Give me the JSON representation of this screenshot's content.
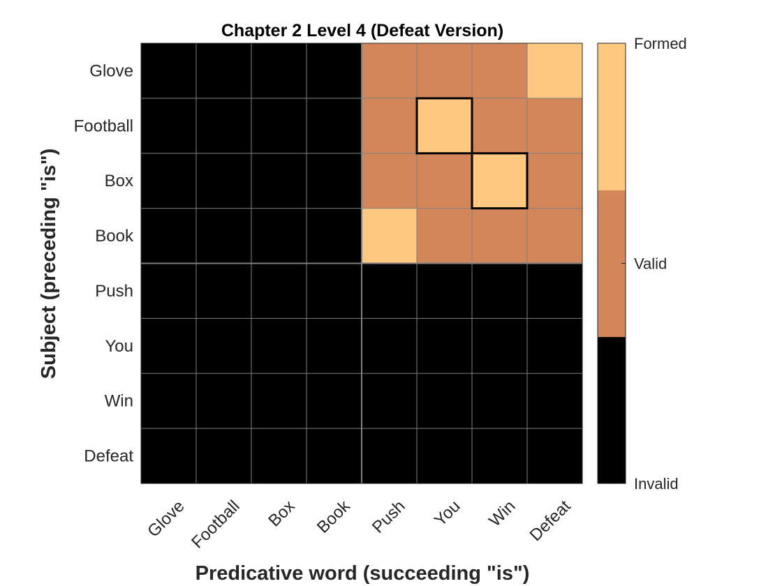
{
  "chart_data": {
    "type": "heatmap",
    "title": "Chapter 2 Level 4 (Defeat Version)",
    "xlabel": "Predicative word (succeeding \"is\")",
    "ylabel": "Subject (preceding \"is\")",
    "x_categories": [
      "Glove",
      "Football",
      "Box",
      "Book",
      "Push",
      "You",
      "Win",
      "Defeat"
    ],
    "y_categories": [
      "Glove",
      "Football",
      "Box",
      "Book",
      "Push",
      "You",
      "Win",
      "Defeat"
    ],
    "values": [
      [
        0,
        0,
        0,
        0,
        1,
        1,
        1,
        2
      ],
      [
        0,
        0,
        0,
        0,
        1,
        2,
        1,
        1
      ],
      [
        0,
        0,
        0,
        0,
        1,
        1,
        2,
        1
      ],
      [
        0,
        0,
        0,
        0,
        2,
        1,
        1,
        1
      ],
      [
        0,
        0,
        0,
        0,
        0,
        0,
        0,
        0
      ],
      [
        0,
        0,
        0,
        0,
        0,
        0,
        0,
        0
      ],
      [
        0,
        0,
        0,
        0,
        0,
        0,
        0,
        0
      ],
      [
        0,
        0,
        0,
        0,
        0,
        0,
        0,
        0
      ]
    ],
    "highlighted_cells": [
      {
        "row": "Football",
        "col": "You"
      },
      {
        "row": "Box",
        "col": "Win"
      }
    ],
    "colorbar": {
      "levels": [
        {
          "value": 0,
          "label": "Invalid",
          "color": "#000000"
        },
        {
          "value": 1,
          "label": "Valid",
          "color": "#d38659"
        },
        {
          "value": 2,
          "label": "Formed",
          "color": "#fec881"
        }
      ],
      "range": [
        0,
        2
      ]
    },
    "grid": true
  }
}
